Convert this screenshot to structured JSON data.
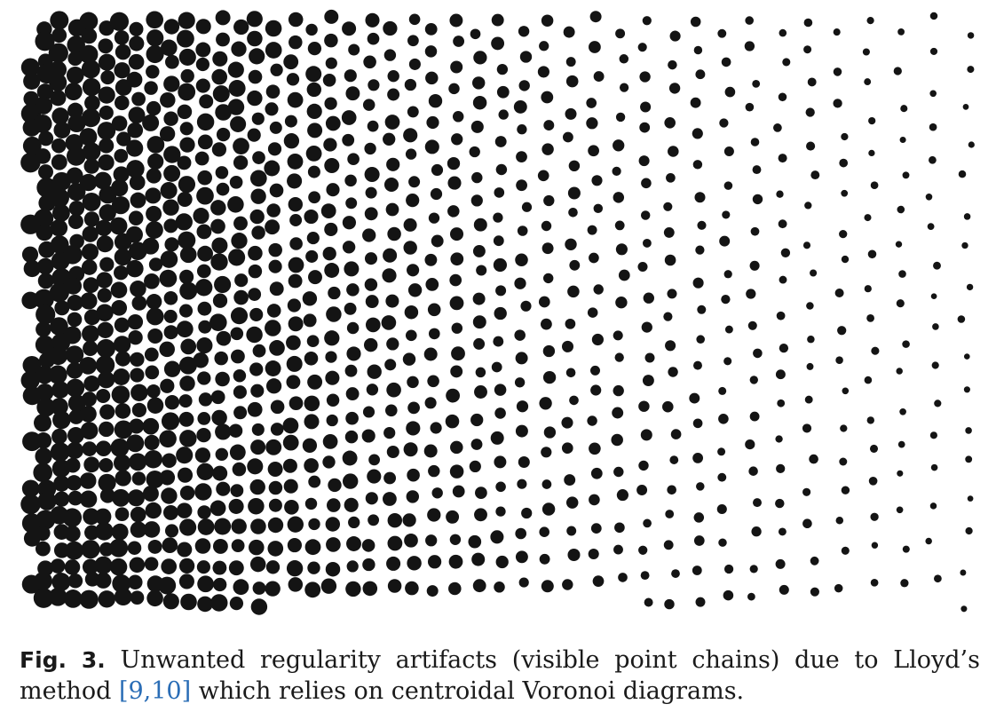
{
  "figure": {
    "dot_color": "#141414",
    "background": "#ffffff"
  },
  "caption": {
    "label": "Fig. 3.",
    "text_before_ref": " Unwanted regularity artifacts (visible point chains) due to Lloyd’s method ",
    "ref": "[9,10]",
    "text_after_ref": " which relies on centroidal Voronoi diagrams.",
    "ref_color": "#2a6db6"
  }
}
